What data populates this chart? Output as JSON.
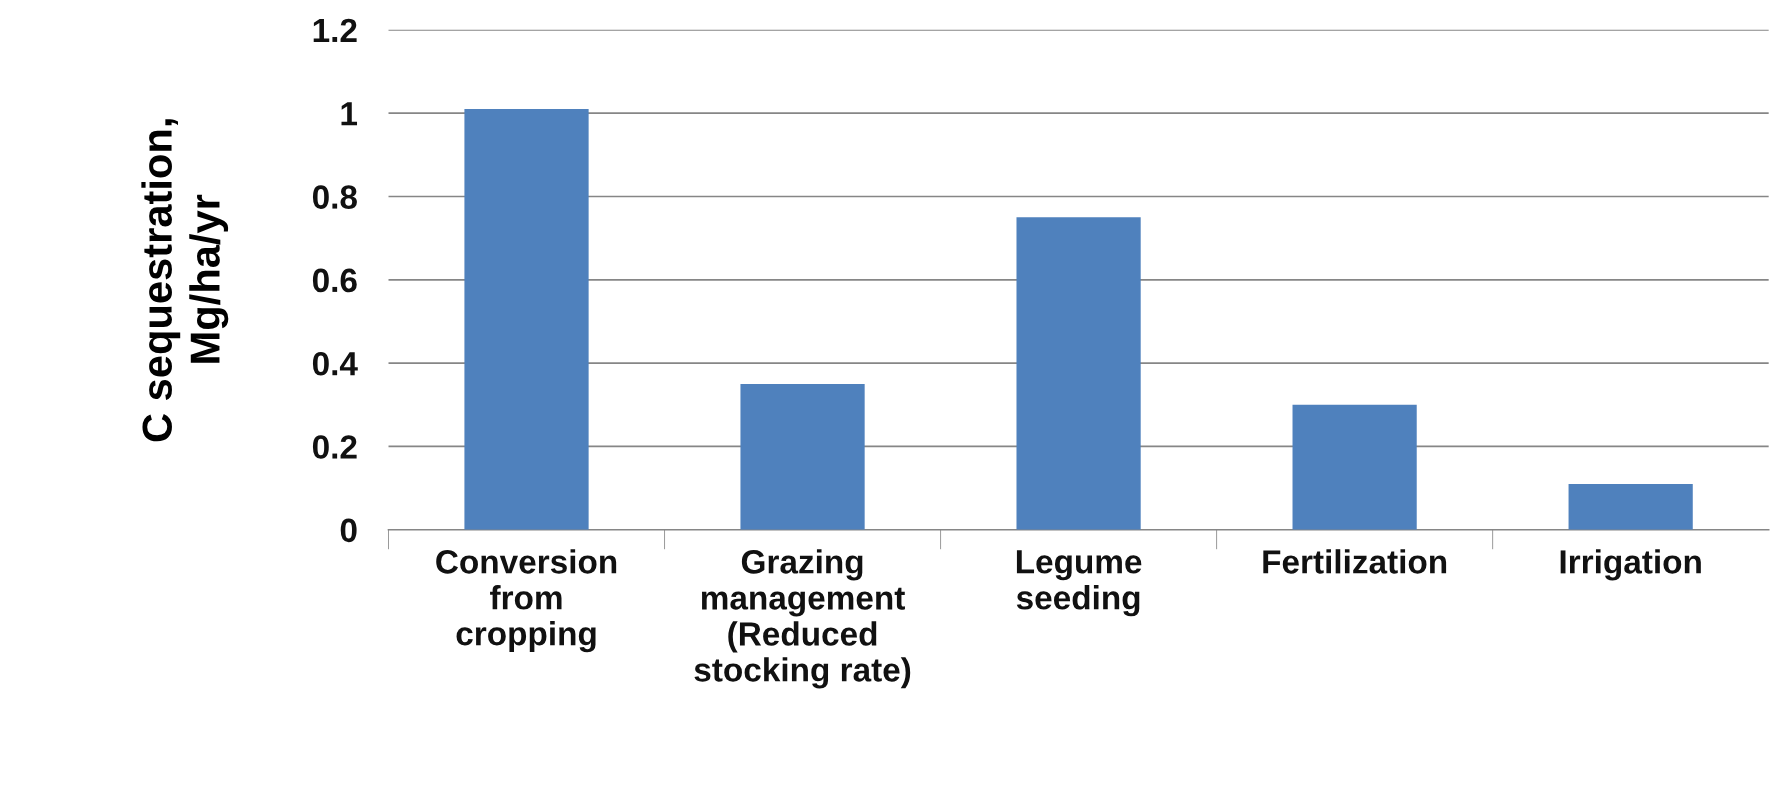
{
  "chart_data": {
    "type": "bar",
    "ylabel": "C sequestration,\nMg/ha/yr",
    "categories": [
      "Conversion\nfrom\ncropping",
      "Grazing\nmanagement\n(Reduced\nstocking rate)",
      "Legume\nseeding",
      "Fertilization",
      "Irrigation"
    ],
    "values": [
      1.01,
      0.35,
      0.75,
      0.3,
      0.11
    ],
    "color": "#4f81bd",
    "ylim": [
      0,
      1.2
    ],
    "yticks": [
      0,
      0.2,
      0.4,
      0.6,
      0.8,
      1,
      1.2
    ],
    "grid": "y"
  }
}
